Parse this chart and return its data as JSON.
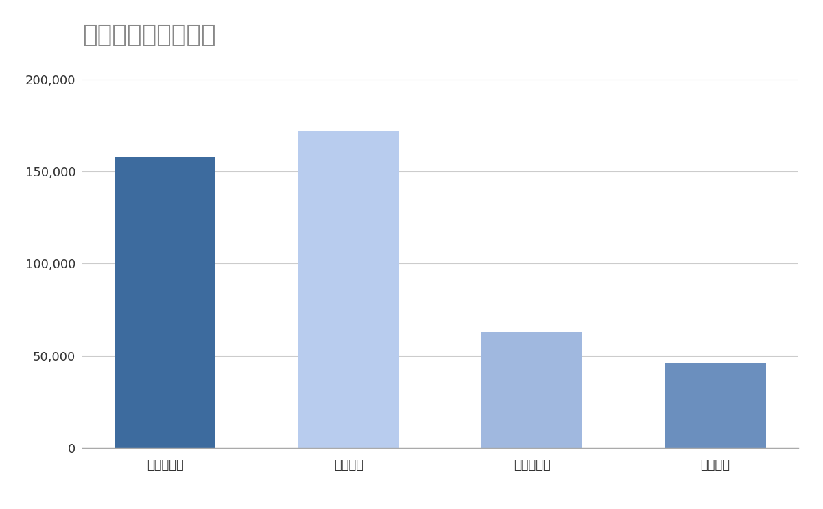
{
  "categories": [
    "アース製薬",
    "小林製薬",
    "フマキラー",
    "エステー"
  ],
  "values": [
    158000,
    172000,
    63000,
    46000
  ],
  "bar_colors": [
    "#3d6b9e",
    "#b8ccee",
    "#a0b8df",
    "#6b8fbe"
  ],
  "title": "競合含む年間売上高",
  "title_color": "#888888",
  "title_fontsize": 26,
  "ylim": [
    0,
    210000
  ],
  "yticks": [
    0,
    50000,
    100000,
    150000,
    200000
  ],
  "background_color": "#ffffff",
  "grid_color": "#cccccc",
  "tick_label_fontsize": 13,
  "category_fontsize": 13
}
